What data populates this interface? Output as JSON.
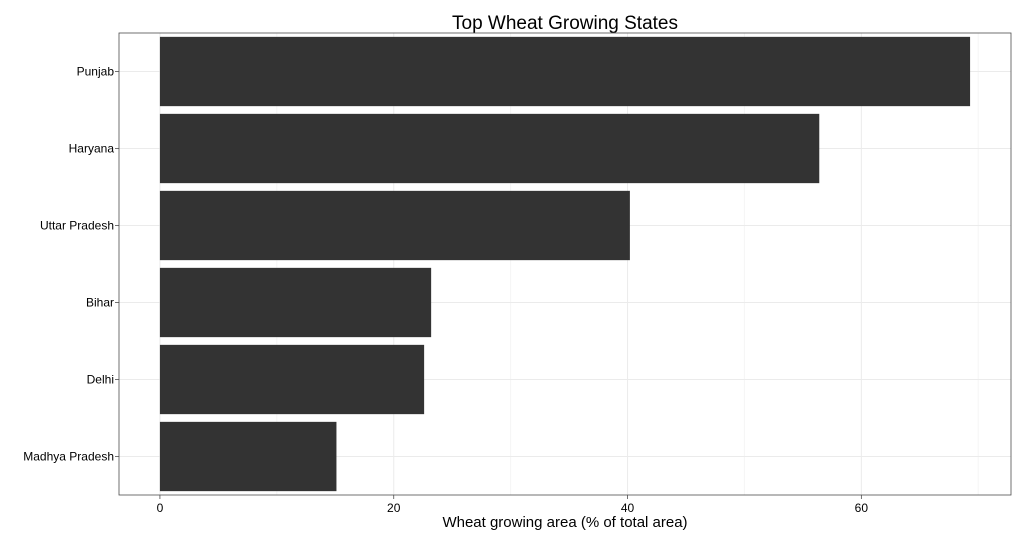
{
  "chart_data": {
    "type": "bar",
    "orientation": "horizontal",
    "title": "Top Wheat Growing States",
    "xlabel": "Wheat growing area (% of total area)",
    "ylabel": "",
    "categories": [
      "Punjab",
      "Haryana",
      "Uttar Pradesh",
      "Bihar",
      "Delhi",
      "Madhya Pradesh"
    ],
    "values": [
      69.3,
      56.4,
      40.2,
      23.2,
      22.6,
      15.1
    ],
    "xlim": [
      -3.5,
      72.8
    ],
    "xticks": [
      0,
      20,
      40,
      60
    ],
    "grid": true,
    "bar_color": "#333333"
  }
}
